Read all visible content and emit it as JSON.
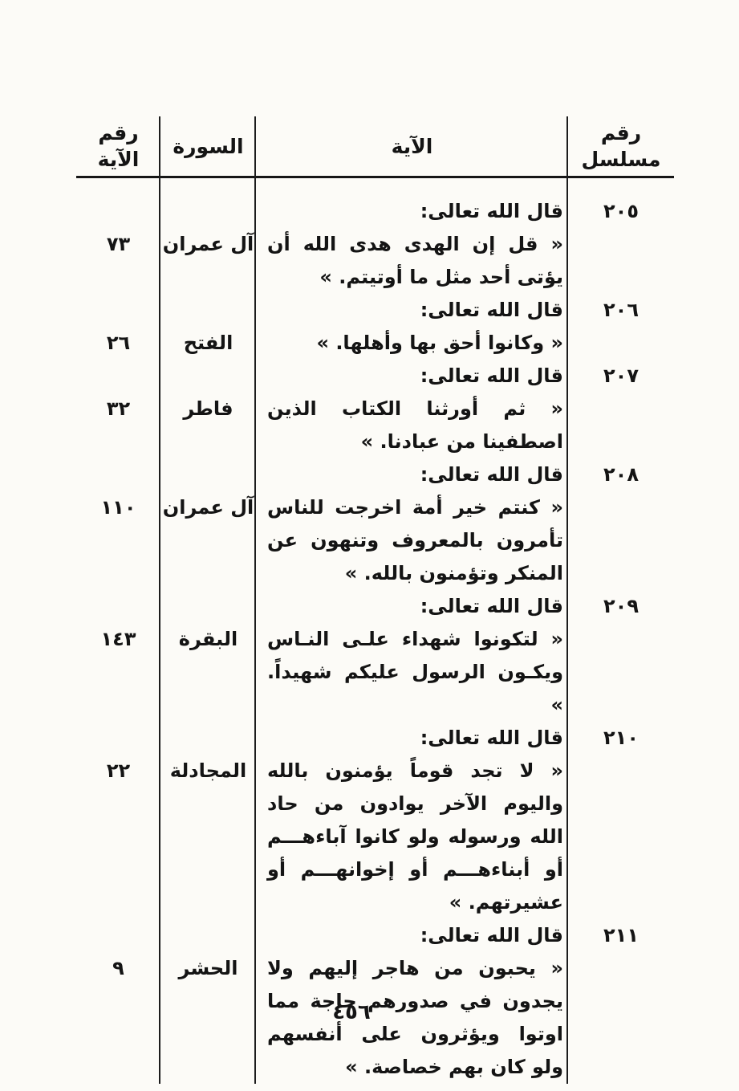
{
  "document": {
    "page_number": "٤٥٦",
    "columns": {
      "serial": "رقم\nمسلسل",
      "verse": "الآية",
      "surah": "السورة",
      "ayah_no": "رقم\nالآية"
    },
    "entries": [
      {
        "serial": "٢٠٥",
        "intro": "قال الله تعالى:",
        "verse": "« قل إن الهدى هدى الله أن يؤتى أحد مثل ما أوتيتم. »",
        "surah": "آل عمران",
        "ayah": "٧٣"
      },
      {
        "serial": "٢٠٦",
        "intro": "قال الله تعالى:",
        "verse": "« وكانوا أحق بها وأهلها. »",
        "surah": "الفتح",
        "ayah": "٢٦"
      },
      {
        "serial": "٢٠٧",
        "intro": "قال الله تعالى:",
        "verse": "« ثم أورثنا الكتاب الذين اصطفينا من عبادنا. »",
        "surah": "فاطر",
        "ayah": "٣٢"
      },
      {
        "serial": "٢٠٨",
        "intro": "قال الله تعالى:",
        "verse": "« كنتم خير أمة اخرجت للناس تأمرون بالمعروف وتنهون عن المنكر وتؤمنون بالله. »",
        "surah": "آل عمران",
        "ayah": "١١٠"
      },
      {
        "serial": "٢٠٩",
        "intro": "قال الله تعالى:",
        "verse": "« لتكونوا شهداء علـى النـاس ويكـون الرسول عليكم شهيداً. »",
        "surah": "البقرة",
        "ayah": "١٤٣"
      },
      {
        "serial": "٢١٠",
        "intro": "قال الله تعالى:",
        "verse": "« لا تجد قوماً يؤمنون بالله واليوم الآخر يوادون من حاد الله ورسوله ولو كانوا آباءهـــم أو أبناءهـــم أو إخوانهـــم أو عشيرتهم. »",
        "surah": "المجادلة",
        "ayah": "٢٢"
      },
      {
        "serial": "٢١١",
        "intro": "قال الله تعالى:",
        "verse": "« يحبون من هاجر إليهم ولا يجدون في صدورهم حاجة مما اوتوا ويؤثرون على أنفسهم ولو كان بهم خصاصة. »",
        "surah": "الحشر",
        "ayah": "٩"
      }
    ]
  }
}
